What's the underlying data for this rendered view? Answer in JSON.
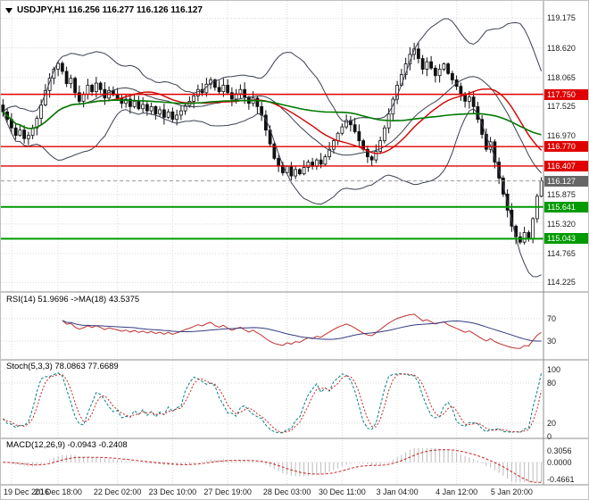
{
  "main": {
    "title": "USDJPY,H1 116.256 116.277 116.126 116.127",
    "symbol": "USDJPY",
    "timeframe": "H1",
    "ohlc": {
      "open": "116.256",
      "high": "116.277",
      "low": "116.126",
      "close": "116.127"
    }
  },
  "indicators": {
    "rsi": {
      "label": "RSI(14) 51.9696 ->MA(18) 43.5375",
      "value": 51.9696,
      "ma": 43.5375,
      "ticks": [
        "70",
        "30"
      ]
    },
    "stoch": {
      "label": "Stoch(5,3,3) 78.0863 77.6689",
      "k": 78.0863,
      "d": 77.6689,
      "ticks": [
        "100",
        "80",
        "20",
        "0"
      ]
    },
    "macd": {
      "label": "MACD(12,26,9) -0.0943 -0.2408",
      "value": -0.0943,
      "signal": -0.2408,
      "ticks": [
        "0.3056",
        "0.0000",
        "-0.4661"
      ]
    }
  },
  "colors": {
    "resistance": "#e00000",
    "support": "#009b00",
    "current": "#666666",
    "candle": "#111111",
    "bollinger": "#39404f",
    "ma_fast": "#d40000",
    "ma_slow": "#007a00",
    "rsi_line": "#c03030",
    "rsi_ma": "#333a80",
    "stoch_k": "#008080",
    "stoch_d": "#cc2222",
    "macd_hist": "#bbbbbb",
    "macd_signal": "#cc2222",
    "grid": "#d9d9d9",
    "separator": "#8c8c8c"
  },
  "chart_data": {
    "type": "candlestick",
    "title": "USDJPY,H1",
    "x_tick_labels": [
      "19 Dec 2016",
      "20 Dec 18:00",
      "22 Dec 02:00",
      "23 Dec 10:00",
      "27 Dec 19:00",
      "28 Dec 03:00",
      "30 Dec 11:00",
      "3 Jan 04:00",
      "4 Jan 12:00",
      "5 Jan 20:00"
    ],
    "x_tick_bar_indices": [
      2,
      13,
      27,
      40,
      53,
      67,
      80,
      93,
      107,
      120
    ],
    "y_tick_labels": [
      "119.175",
      "118.620",
      "118.065",
      "117.525",
      "116.970",
      "115.875",
      "115.320",
      "114.765",
      "114.225"
    ],
    "y_range": [
      114.08,
      119.4
    ],
    "closes": [
      117.42,
      117.28,
      117.12,
      116.98,
      117.08,
      116.92,
      116.98,
      117.12,
      117.3,
      117.55,
      117.82,
      118.05,
      118.22,
      118.33,
      118.18,
      117.95,
      118.05,
      117.78,
      117.62,
      117.75,
      117.92,
      117.8,
      117.96,
      117.84,
      117.68,
      117.82,
      117.74,
      117.68,
      117.58,
      117.66,
      117.52,
      117.62,
      117.48,
      117.56,
      117.44,
      117.52,
      117.38,
      117.46,
      117.32,
      117.42,
      117.28,
      117.36,
      117.44,
      117.54,
      117.62,
      117.72,
      117.84,
      117.78,
      117.94,
      118.02,
      117.88,
      117.8,
      117.92,
      117.78,
      117.66,
      117.76,
      117.84,
      117.7,
      117.58,
      117.68,
      117.52,
      117.36,
      117.08,
      116.82,
      116.55,
      116.42,
      116.28,
      116.4,
      116.22,
      116.34,
      116.26,
      116.38,
      116.48,
      116.4,
      116.52,
      116.44,
      116.58,
      116.72,
      116.88,
      117.02,
      117.14,
      117.26,
      117.18,
      117.05,
      116.88,
      116.72,
      116.58,
      116.52,
      116.68,
      116.88,
      117.12,
      117.38,
      117.66,
      117.92,
      118.12,
      118.32,
      118.5,
      118.6,
      118.42,
      118.22,
      118.36,
      118.24,
      118.1,
      118.22,
      118.32,
      118.14,
      118.02,
      117.9,
      117.76,
      117.62,
      117.7,
      117.52,
      117.28,
      117.0,
      116.72,
      116.86,
      116.48,
      116.18,
      115.88,
      115.58,
      115.28,
      115.08,
      114.98,
      115.16,
      115.04,
      115.42,
      115.84,
      116.127
    ],
    "price_levels": [
      {
        "label": "117.750",
        "price": 117.75,
        "role": "resistance",
        "style": "red"
      },
      {
        "label": "116.770",
        "price": 116.77,
        "role": "resistance",
        "style": "red"
      },
      {
        "label": "116.407",
        "price": 116.407,
        "role": "resistance",
        "style": "red"
      },
      {
        "label": "116.127",
        "price": 116.127,
        "role": "current-price",
        "style": "grey"
      },
      {
        "label": "115.641",
        "price": 115.641,
        "role": "support",
        "style": "green"
      },
      {
        "label": "115.043",
        "price": 115.043,
        "role": "support",
        "style": "green"
      }
    ],
    "overlays": [
      {
        "name": "Bollinger Bands",
        "period": 20,
        "deviation": 2
      },
      {
        "name": "MA fast (red)",
        "period": 26
      },
      {
        "name": "MA slow (green)",
        "period": 72
      }
    ],
    "lower_panels": [
      "RSI(14) with MA(18)",
      "Stoch(5,3,3)",
      "MACD(12,26,9)"
    ]
  }
}
